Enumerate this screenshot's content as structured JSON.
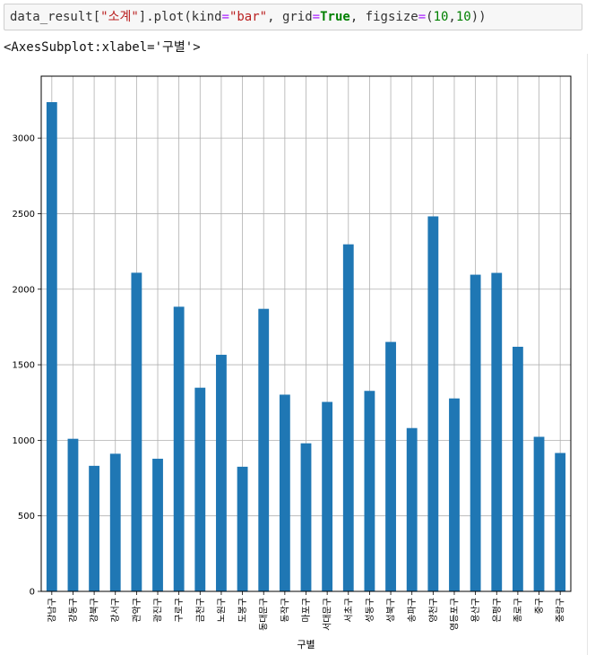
{
  "cell": {
    "code_parts": [
      {
        "t": "data_result[",
        "c": ""
      },
      {
        "t": "\"소계\"",
        "c": "tok-str"
      },
      {
        "t": "].plot(kind",
        "c": ""
      },
      {
        "t": "=",
        "c": "tok-op"
      },
      {
        "t": "\"bar\"",
        "c": "tok-str"
      },
      {
        "t": ", grid",
        "c": ""
      },
      {
        "t": "=",
        "c": "tok-op"
      },
      {
        "t": "True",
        "c": "tok-kw"
      },
      {
        "t": ", figsize",
        "c": ""
      },
      {
        "t": "=",
        "c": "tok-op"
      },
      {
        "t": "(",
        "c": ""
      },
      {
        "t": "10",
        "c": "tok-num"
      },
      {
        "t": ",",
        "c": ""
      },
      {
        "t": "10",
        "c": "tok-num"
      },
      {
        "t": "))",
        "c": ""
      }
    ],
    "output_text": "<AxesSubplot:xlabel='구별'>"
  },
  "chart_data": {
    "type": "bar",
    "categories": [
      "강남구",
      "강동구",
      "강북구",
      "강서구",
      "관악구",
      "광진구",
      "구로구",
      "금천구",
      "노원구",
      "도봉구",
      "동대문구",
      "동작구",
      "마포구",
      "서대문구",
      "서초구",
      "성동구",
      "성북구",
      "송파구",
      "양천구",
      "영등포구",
      "용산구",
      "은평구",
      "종로구",
      "중구",
      "중랑구"
    ],
    "values": [
      3238,
      1010,
      831,
      911,
      2109,
      878,
      1884,
      1348,
      1566,
      825,
      1870,
      1302,
      980,
      1254,
      2297,
      1327,
      1651,
      1081,
      2482,
      1277,
      2096,
      2108,
      1619,
      1023,
      916
    ],
    "xlabel": "구별",
    "ylabel": "",
    "ylim": [
      0,
      3410
    ],
    "yticks": [
      0,
      500,
      1000,
      1500,
      2000,
      2500,
      3000
    ],
    "grid": true,
    "legend": false,
    "bar_color": "#1f77b4"
  }
}
